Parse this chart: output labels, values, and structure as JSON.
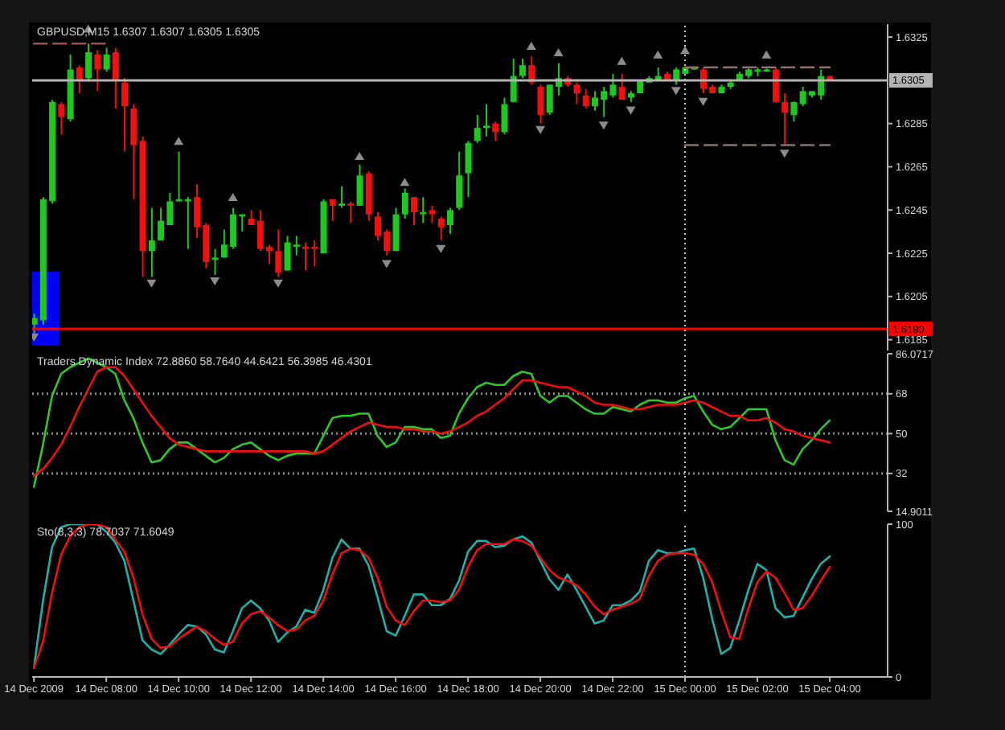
{
  "chart_data": [
    {
      "type": "candlestick",
      "title": "GBPUSD,M15 1.6307 1.6307 1.6305 1.6305",
      "x": [
        "2009-12-14T06:00",
        "2009-12-14T06:15",
        "2009-12-14T06:30",
        "2009-12-14T06:45",
        "2009-12-14T07:00",
        "2009-12-14T07:15",
        "2009-12-14T07:30",
        "2009-12-14T07:45",
        "2009-12-14T08:00",
        "2009-12-14T08:15",
        "2009-12-14T08:30",
        "2009-12-14T08:45",
        "2009-12-14T09:00",
        "2009-12-14T09:15",
        "2009-12-14T09:30",
        "2009-12-14T09:45",
        "2009-12-14T10:00",
        "2009-12-14T10:15",
        "2009-12-14T10:30",
        "2009-12-14T10:45",
        "2009-12-14T11:00",
        "2009-12-14T11:15",
        "2009-12-14T11:30",
        "2009-12-14T11:45",
        "2009-12-14T12:00",
        "2009-12-14T12:15",
        "2009-12-14T12:30",
        "2009-12-14T12:45",
        "2009-12-14T13:00",
        "2009-12-14T13:15",
        "2009-12-14T13:30",
        "2009-12-14T13:45",
        "2009-12-14T14:00",
        "2009-12-14T14:15",
        "2009-12-14T14:30",
        "2009-12-14T14:45",
        "2009-12-14T15:00",
        "2009-12-14T15:15",
        "2009-12-14T15:30",
        "2009-12-14T15:45",
        "2009-12-14T16:00",
        "2009-12-14T16:15",
        "2009-12-14T16:30",
        "2009-12-14T16:45",
        "2009-12-14T17:00",
        "2009-12-14T17:15",
        "2009-12-14T17:30",
        "2009-12-14T17:45",
        "2009-12-14T18:00",
        "2009-12-14T18:15",
        "2009-12-14T18:30",
        "2009-12-14T18:45",
        "2009-12-14T19:00",
        "2009-12-14T19:15",
        "2009-12-14T19:30",
        "2009-12-14T19:45",
        "2009-12-14T20:00",
        "2009-12-14T20:15",
        "2009-12-14T20:30",
        "2009-12-14T20:45",
        "2009-12-14T21:00",
        "2009-12-14T21:15",
        "2009-12-14T21:30",
        "2009-12-14T21:45",
        "2009-12-14T22:00",
        "2009-12-14T22:15",
        "2009-12-14T22:30",
        "2009-12-14T22:45",
        "2009-12-14T23:00",
        "2009-12-14T23:15",
        "2009-12-14T23:30",
        "2009-12-14T23:45",
        "2009-12-15T00:00",
        "2009-12-15T00:15",
        "2009-12-15T00:30",
        "2009-12-15T00:45",
        "2009-12-15T01:00",
        "2009-12-15T01:15",
        "2009-12-15T01:30",
        "2009-12-15T01:45",
        "2009-12-15T02:00",
        "2009-12-15T02:15",
        "2009-12-15T02:30",
        "2009-12-15T02:45",
        "2009-12-15T03:00",
        "2009-12-15T03:15",
        "2009-12-15T03:30",
        "2009-12-15T03:45",
        "2009-12-15T04:00"
      ],
      "ohlc": [
        [
          1.6192,
          1.6197,
          1.6188,
          1.6195
        ],
        [
          1.6194,
          1.6251,
          1.6192,
          1.625
        ],
        [
          1.6249,
          1.6296,
          1.6248,
          1.6295
        ],
        [
          1.6294,
          1.6295,
          1.628,
          1.6288
        ],
        [
          1.6287,
          1.6317,
          1.6286,
          1.631
        ],
        [
          1.6311,
          1.6312,
          1.6299,
          1.6305
        ],
        [
          1.6306,
          1.6322,
          1.6305,
          1.6318
        ],
        [
          1.6317,
          1.6319,
          1.63,
          1.631
        ],
        [
          1.631,
          1.632,
          1.6309,
          1.6317
        ],
        [
          1.6318,
          1.632,
          1.6292,
          1.6305
        ],
        [
          1.6304,
          1.6306,
          1.6272,
          1.6293
        ],
        [
          1.6292,
          1.6294,
          1.625,
          1.6275
        ],
        [
          1.6277,
          1.6279,
          1.6214,
          1.6226
        ],
        [
          1.6226,
          1.6246,
          1.6214,
          1.6231
        ],
        [
          1.6231,
          1.6246,
          1.6231,
          1.624
        ],
        [
          1.6238,
          1.6253,
          1.6238,
          1.6249
        ],
        [
          1.6249,
          1.6272,
          1.6249,
          1.625
        ],
        [
          1.6249,
          1.6251,
          1.6227,
          1.625
        ],
        [
          1.6251,
          1.6257,
          1.6232,
          1.6237
        ],
        [
          1.6238,
          1.6239,
          1.6218,
          1.6221
        ],
        [
          1.6222,
          1.6227,
          1.6215,
          1.6223
        ],
        [
          1.6223,
          1.6236,
          1.6223,
          1.6229
        ],
        [
          1.6228,
          1.6246,
          1.6227,
          1.6243
        ],
        [
          1.6242,
          1.6243,
          1.6235,
          1.6243
        ],
        [
          1.6241,
          1.6245,
          1.6238,
          1.6238
        ],
        [
          1.624,
          1.6245,
          1.6226,
          1.6227
        ],
        [
          1.6228,
          1.6229,
          1.622,
          1.6226
        ],
        [
          1.6226,
          1.6236,
          1.6214,
          1.6216
        ],
        [
          1.6217,
          1.6233,
          1.6217,
          1.623
        ],
        [
          1.6228,
          1.6233,
          1.6224,
          1.6229
        ],
        [
          1.6228,
          1.623,
          1.6217,
          1.6227
        ],
        [
          1.6228,
          1.6231,
          1.6219,
          1.6227
        ],
        [
          1.6225,
          1.625,
          1.6225,
          1.6249
        ],
        [
          1.625,
          1.625,
          1.624,
          1.6247
        ],
        [
          1.6247,
          1.6256,
          1.6246,
          1.6248
        ],
        [
          1.6248,
          1.6249,
          1.6239,
          1.6247
        ],
        [
          1.6247,
          1.6266,
          1.6247,
          1.6261
        ],
        [
          1.6262,
          1.6263,
          1.624,
          1.6243
        ],
        [
          1.6242,
          1.6244,
          1.6231,
          1.6233
        ],
        [
          1.6235,
          1.6236,
          1.6224,
          1.6226
        ],
        [
          1.6226,
          1.6246,
          1.6226,
          1.6243
        ],
        [
          1.6243,
          1.6255,
          1.6241,
          1.6253
        ],
        [
          1.6251,
          1.6251,
          1.6238,
          1.6244
        ],
        [
          1.6243,
          1.6251,
          1.6239,
          1.6244
        ],
        [
          1.6245,
          1.6247,
          1.6239,
          1.6243
        ],
        [
          1.6241,
          1.6242,
          1.6231,
          1.6237
        ],
        [
          1.6238,
          1.6246,
          1.6234,
          1.6245
        ],
        [
          1.6246,
          1.6272,
          1.6245,
          1.6261
        ],
        [
          1.6262,
          1.6277,
          1.6251,
          1.6276
        ],
        [
          1.6277,
          1.6289,
          1.6276,
          1.6283
        ],
        [
          1.6283,
          1.6294,
          1.6279,
          1.6284
        ],
        [
          1.6285,
          1.6286,
          1.6277,
          1.6281
        ],
        [
          1.6281,
          1.6297,
          1.628,
          1.6294
        ],
        [
          1.6295,
          1.6315,
          1.6295,
          1.6307
        ],
        [
          1.6307,
          1.6315,
          1.6306,
          1.6312
        ],
        [
          1.6312,
          1.6316,
          1.6303,
          1.6304
        ],
        [
          1.6302,
          1.6303,
          1.6285,
          1.6289
        ],
        [
          1.629,
          1.6303,
          1.6289,
          1.6303
        ],
        [
          1.6302,
          1.6313,
          1.6298,
          1.6306
        ],
        [
          1.6306,
          1.6307,
          1.6302,
          1.6303
        ],
        [
          1.6303,
          1.6304,
          1.6294,
          1.6299
        ],
        [
          1.6298,
          1.6301,
          1.6292,
          1.6293
        ],
        [
          1.6293,
          1.63,
          1.6291,
          1.6297
        ],
        [
          1.6296,
          1.6302,
          1.6288,
          1.63
        ],
        [
          1.6298,
          1.6308,
          1.6297,
          1.6303
        ],
        [
          1.6302,
          1.6308,
          1.6296,
          1.6296
        ],
        [
          1.6297,
          1.63,
          1.6295,
          1.6299
        ],
        [
          1.6299,
          1.6305,
          1.6299,
          1.6305
        ],
        [
          1.6304,
          1.6307,
          1.6304,
          1.6306
        ],
        [
          1.6305,
          1.6311,
          1.6305,
          1.6307
        ],
        [
          1.6308,
          1.6309,
          1.6305,
          1.6305
        ],
        [
          1.6305,
          1.6311,
          1.6303,
          1.631
        ],
        [
          1.6308,
          1.6311,
          1.6308,
          1.6311
        ],
        [
          1.631,
          1.6311,
          1.631,
          1.6311
        ],
        [
          1.631,
          1.6311,
          1.6299,
          1.6301
        ],
        [
          1.6302,
          1.6303,
          1.6299,
          1.6299
        ],
        [
          1.6299,
          1.6303,
          1.6299,
          1.6302
        ],
        [
          1.6302,
          1.6305,
          1.6301,
          1.6304
        ],
        [
          1.6305,
          1.6309,
          1.6305,
          1.6308
        ],
        [
          1.6307,
          1.6311,
          1.6306,
          1.631
        ],
        [
          1.6309,
          1.6311,
          1.6307,
          1.631
        ],
        [
          1.6309,
          1.6311,
          1.6309,
          1.631
        ],
        [
          1.631,
          1.6311,
          1.6295,
          1.6295
        ],
        [
          1.6295,
          1.6299,
          1.6275,
          1.629
        ],
        [
          1.6289,
          1.6295,
          1.6286,
          1.6295
        ],
        [
          1.6294,
          1.6302,
          1.6293,
          1.63
        ],
        [
          1.6298,
          1.63,
          1.6297,
          1.63
        ],
        [
          1.6298,
          1.631,
          1.6296,
          1.6307
        ],
        [
          1.6307,
          1.6307,
          1.6305,
          1.6305
        ]
      ],
      "colors": [
        "#1fc81f",
        "#1fc81f",
        "#1fc81f",
        "#f01010",
        "#1fc81f",
        "#f01010",
        "#1fc81f",
        "#f01010",
        "#1fc81f",
        "#f01010",
        "#f01010",
        "#f01010",
        "#f01010",
        "#1fc81f",
        "#1fc81f",
        "#1fc81f",
        "#1fc81f",
        "#1fc81f",
        "#f01010",
        "#f01010",
        "#1fc81f",
        "#1fc81f",
        "#1fc81f",
        "#1fc81f",
        "#f01010",
        "#f01010",
        "#f01010",
        "#f01010",
        "#1fc81f",
        "#1fc81f",
        "#f01010",
        "#f01010",
        "#1fc81f",
        "#f01010",
        "#1fc81f",
        "#f01010",
        "#1fc81f",
        "#f01010",
        "#f01010",
        "#f01010",
        "#1fc81f",
        "#1fc81f",
        "#f01010",
        "#1fc81f",
        "#f01010",
        "#f01010",
        "#1fc81f",
        "#1fc81f",
        "#1fc81f",
        "#1fc81f",
        "#1fc81f",
        "#f01010",
        "#1fc81f",
        "#1fc81f",
        "#1fc81f",
        "#f01010",
        "#f01010",
        "#1fc81f",
        "#1fc81f",
        "#f01010",
        "#f01010",
        "#f01010",
        "#1fc81f",
        "#1fc81f",
        "#1fc81f",
        "#f01010",
        "#1fc81f",
        "#1fc81f",
        "#1fc81f",
        "#1fc81f",
        "#f01010",
        "#1fc81f",
        "#1fc81f",
        "#1fc81f",
        "#f01010",
        "#f01010",
        "#1fc81f",
        "#1fc81f",
        "#1fc81f",
        "#1fc81f",
        "#1fc81f",
        "#1fc81f",
        "#f01010",
        "#f01010",
        "#1fc81f",
        "#1fc81f",
        "#1fc81f",
        "#1fc81f",
        "#f01010"
      ],
      "series": [
        {
          "type": "scatter",
          "marker": "triangle",
          "color": "#8c8c8c",
          "x": [
            "2009-12-14T06:00",
            "2009-12-14T07:30",
            "2009-12-14T09:15",
            "2009-12-14T10:00",
            "2009-12-14T11:00",
            "2009-12-14T11:30",
            "2009-12-14T12:45",
            "2009-12-14T15:00",
            "2009-12-14T15:45",
            "2009-12-14T16:15",
            "2009-12-14T17:15",
            "2009-12-14T19:45",
            "2009-12-14T20:00",
            "2009-12-14T20:30",
            "2009-12-14T21:45",
            "2009-12-14T22:15",
            "2009-12-14T22:30",
            "2009-12-14T23:15",
            "2009-12-14T23:45",
            "2009-12-15T00:00",
            "2009-12-15T00:30",
            "2009-12-15T02:15",
            "2009-12-15T02:45"
          ],
          "values": [
            1.6186,
            1.6329,
            1.6211,
            1.6277,
            1.6212,
            1.6251,
            1.6211,
            1.627,
            1.622,
            1.6258,
            1.6227,
            1.6321,
            1.6282,
            1.6318,
            1.6284,
            1.6314,
            1.6291,
            1.6317,
            1.63,
            1.6319,
            1.6295,
            1.6317,
            1.6271
          ]
        },
        {
          "type": "line",
          "line_style": "dashed",
          "color": "#a0503c",
          "x": [
            "2009-12-14T06:00",
            "2009-12-14T08:00"
          ],
          "values": [
            1.6322,
            1.6322
          ]
        },
        {
          "type": "line",
          "line_style": "dashed",
          "color": "#8c7264",
          "x": [
            "2009-12-15T00:00",
            "2009-12-15T04:00"
          ],
          "values": [
            1.6311,
            1.6311
          ]
        },
        {
          "type": "line",
          "line_style": "dashed",
          "color": "#8c7264",
          "x": [
            "2009-12-15T00:00",
            "2009-12-15T04:00"
          ],
          "values": [
            1.6275,
            1.6275
          ]
        }
      ],
      "xlim": [
        "2009-12-14T05:57",
        "2009-12-15T05:36"
      ],
      "ylim": [
        1.618,
        1.6331
      ],
      "yticks": [
        1.6185,
        1.6205,
        1.6225,
        1.6245,
        1.6265,
        1.6285,
        1.6325
      ],
      "tick_labels": "y",
      "ref_lines": [
        {
          "axis": "y",
          "value": 1.6305,
          "label": "1.6305",
          "color": "#b4b4b4"
        },
        {
          "axis": "y",
          "value": 1.619,
          "label": "1.6190",
          "color": "#ff0000"
        },
        {
          "axis": "x",
          "value": "2009-12-15T00:00",
          "line_style": "dotted",
          "color": "#c8c8c8"
        }
      ]
    },
    {
      "type": "line",
      "title": "Traders Dynamic Index 72.8860 58.7640 44.6421 56.3985 46.4301",
      "x": [
        "2009-12-14T06:00",
        "2009-12-14T06:15",
        "2009-12-14T06:30",
        "2009-12-14T06:45",
        "2009-12-14T07:00",
        "2009-12-14T07:15",
        "2009-12-14T07:30",
        "2009-12-14T07:45",
        "2009-12-14T08:00",
        "2009-12-14T08:15",
        "2009-12-14T08:30",
        "2009-12-14T08:45",
        "2009-12-14T09:00",
        "2009-12-14T09:15",
        "2009-12-14T09:30",
        "2009-12-14T09:45",
        "2009-12-14T10:00",
        "2009-12-14T10:15",
        "2009-12-14T10:30",
        "2009-12-14T10:45",
        "2009-12-14T11:00",
        "2009-12-14T11:15",
        "2009-12-14T11:30",
        "2009-12-14T11:45",
        "2009-12-14T12:00",
        "2009-12-14T12:15",
        "2009-12-14T12:30",
        "2009-12-14T12:45",
        "2009-12-14T13:00",
        "2009-12-14T13:15",
        "2009-12-14T13:30",
        "2009-12-14T13:45",
        "2009-12-14T14:00",
        "2009-12-14T14:15",
        "2009-12-14T14:30",
        "2009-12-14T14:45",
        "2009-12-14T15:00",
        "2009-12-14T15:15",
        "2009-12-14T15:30",
        "2009-12-14T15:45",
        "2009-12-14T16:00",
        "2009-12-14T16:15",
        "2009-12-14T16:30",
        "2009-12-14T16:45",
        "2009-12-14T17:00",
        "2009-12-14T17:15",
        "2009-12-14T17:30",
        "2009-12-14T17:45",
        "2009-12-14T18:00",
        "2009-12-14T18:15",
        "2009-12-14T18:30",
        "2009-12-14T18:45",
        "2009-12-14T19:00",
        "2009-12-14T19:15",
        "2009-12-14T19:30",
        "2009-12-14T19:45",
        "2009-12-14T20:00",
        "2009-12-14T20:15",
        "2009-12-14T20:30",
        "2009-12-14T20:45",
        "2009-12-14T21:00",
        "2009-12-14T21:15",
        "2009-12-14T21:30",
        "2009-12-14T21:45",
        "2009-12-14T22:00",
        "2009-12-14T22:15",
        "2009-12-14T22:30",
        "2009-12-14T22:45",
        "2009-12-14T23:00",
        "2009-12-14T23:15",
        "2009-12-14T23:30",
        "2009-12-14T23:45",
        "2009-12-15T00:00",
        "2009-12-15T00:15",
        "2009-12-15T00:30",
        "2009-12-15T00:45",
        "2009-12-15T01:00",
        "2009-12-15T01:15",
        "2009-12-15T01:30",
        "2009-12-15T01:45",
        "2009-12-15T02:00",
        "2009-12-15T02:15",
        "2009-12-15T02:30",
        "2009-12-15T02:45",
        "2009-12-15T03:00",
        "2009-12-15T03:15",
        "2009-12-15T03:30",
        "2009-12-15T03:45",
        "2009-12-15T04:00"
      ],
      "series": [
        {
          "color": "#2ec82e",
          "values": [
            26,
            45,
            67,
            77,
            80,
            82,
            84,
            82,
            80,
            77,
            65,
            57,
            46,
            37,
            38,
            43,
            46,
            46,
            43,
            40,
            37,
            39,
            43,
            45,
            46,
            43,
            40,
            38,
            40,
            41,
            41,
            41,
            49,
            57,
            58,
            58,
            59,
            59,
            49,
            44,
            46,
            53,
            53,
            52,
            52,
            48,
            49,
            59,
            66,
            71,
            73,
            72,
            72,
            76,
            78,
            77,
            67,
            64,
            67,
            67,
            64,
            61,
            59,
            59,
            62,
            61,
            60,
            63,
            65,
            65,
            64,
            64,
            66,
            67,
            60,
            54,
            52,
            53,
            57,
            61,
            61,
            61,
            47,
            38,
            36,
            43,
            47,
            52,
            56
          ]
        },
        {
          "color": "#f01010",
          "values": [
            31,
            34,
            39,
            45,
            53,
            62,
            70,
            78,
            80,
            80,
            76,
            70,
            64,
            58,
            53,
            48,
            45,
            44,
            43,
            42,
            42,
            42,
            42,
            42,
            42,
            42,
            42,
            42,
            42,
            42,
            42,
            41,
            42,
            45,
            48,
            51,
            53,
            55,
            54,
            53,
            53,
            52,
            52,
            51,
            51,
            50,
            51,
            53,
            55,
            58,
            60,
            63,
            66,
            70,
            74,
            74,
            73,
            72,
            71,
            71,
            69,
            67,
            64,
            63,
            63,
            62,
            61,
            61,
            62,
            63,
            63,
            63,
            64,
            65,
            64,
            62,
            60,
            58,
            58,
            56,
            56,
            57,
            55,
            52,
            51,
            49,
            48,
            47,
            46
          ]
        }
      ],
      "xlim": [
        "2009-12-14T05:57",
        "2009-12-15T05:36"
      ],
      "ylim": [
        14.9011,
        86.0717
      ],
      "yticks": [
        14.9011,
        32,
        50,
        68,
        86.0717
      ],
      "tick_labels": "y",
      "ref_lines": [
        {
          "axis": "y",
          "value": 68,
          "line_style": "dotted",
          "color": "#8c8c8c"
        },
        {
          "axis": "y",
          "value": 50,
          "line_style": "dotted",
          "color": "#8c8c8c"
        },
        {
          "axis": "y",
          "value": 32,
          "line_style": "dotted",
          "color": "#8c8c8c"
        },
        {
          "axis": "x",
          "value": "2009-12-15T00:00",
          "line_style": "dotted",
          "color": "#c8c8c8"
        }
      ]
    },
    {
      "type": "line",
      "title": "Sto(8,3,3) 78.7037 71.6049",
      "x": [
        "2009-12-14T06:00",
        "2009-12-14T06:15",
        "2009-12-14T06:30",
        "2009-12-14T06:45",
        "2009-12-14T07:00",
        "2009-12-14T07:15",
        "2009-12-14T07:30",
        "2009-12-14T07:45",
        "2009-12-14T08:00",
        "2009-12-14T08:15",
        "2009-12-14T08:30",
        "2009-12-14T08:45",
        "2009-12-14T09:00",
        "2009-12-14T09:15",
        "2009-12-14T09:30",
        "2009-12-14T09:45",
        "2009-12-14T10:00",
        "2009-12-14T10:15",
        "2009-12-14T10:30",
        "2009-12-14T10:45",
        "2009-12-14T11:00",
        "2009-12-14T11:15",
        "2009-12-14T11:30",
        "2009-12-14T11:45",
        "2009-12-14T12:00",
        "2009-12-14T12:15",
        "2009-12-14T12:30",
        "2009-12-14T12:45",
        "2009-12-14T13:00",
        "2009-12-14T13:15",
        "2009-12-14T13:30",
        "2009-12-14T13:45",
        "2009-12-14T14:00",
        "2009-12-14T14:15",
        "2009-12-14T14:30",
        "2009-12-14T14:45",
        "2009-12-14T15:00",
        "2009-12-14T15:15",
        "2009-12-14T15:30",
        "2009-12-14T15:45",
        "2009-12-14T16:00",
        "2009-12-14T16:15",
        "2009-12-14T16:30",
        "2009-12-14T16:45",
        "2009-12-14T17:00",
        "2009-12-14T17:15",
        "2009-12-14T17:30",
        "2009-12-14T17:45",
        "2009-12-14T18:00",
        "2009-12-14T18:15",
        "2009-12-14T18:30",
        "2009-12-14T18:45",
        "2009-12-14T19:00",
        "2009-12-14T19:15",
        "2009-12-14T19:30",
        "2009-12-14T19:45",
        "2009-12-14T20:00",
        "2009-12-14T20:15",
        "2009-12-14T20:30",
        "2009-12-14T20:45",
        "2009-12-14T21:00",
        "2009-12-14T21:15",
        "2009-12-14T21:30",
        "2009-12-14T21:45",
        "2009-12-14T22:00",
        "2009-12-14T22:15",
        "2009-12-14T22:30",
        "2009-12-14T22:45",
        "2009-12-14T23:00",
        "2009-12-14T23:15",
        "2009-12-14T23:30",
        "2009-12-14T23:45",
        "2009-12-15T00:00",
        "2009-12-15T00:15",
        "2009-12-15T00:30",
        "2009-12-15T00:45",
        "2009-12-15T01:00",
        "2009-12-15T01:15",
        "2009-12-15T01:30",
        "2009-12-15T01:45",
        "2009-12-15T02:00",
        "2009-12-15T02:15",
        "2009-12-15T02:30",
        "2009-12-15T02:45",
        "2009-12-15T03:00",
        "2009-12-15T03:15",
        "2009-12-15T03:30",
        "2009-12-15T03:45",
        "2009-12-15T04:00"
      ],
      "series": [
        {
          "color": "#20b2aa",
          "values": [
            6,
            50,
            85,
            98,
            100,
            100,
            100,
            100,
            95,
            88,
            76,
            50,
            24,
            18,
            15,
            21,
            28,
            34,
            33,
            28,
            18,
            16,
            30,
            45,
            50,
            45,
            37,
            23,
            29,
            33,
            44,
            42,
            57,
            78,
            90,
            84,
            84,
            73,
            52,
            30,
            27,
            40,
            54,
            54,
            47,
            47,
            51,
            63,
            82,
            89,
            89,
            85,
            86,
            90,
            92,
            88,
            76,
            64,
            57,
            67,
            57,
            46,
            35,
            37,
            47,
            47,
            50,
            56,
            76,
            83,
            81,
            81,
            83,
            84,
            65,
            38,
            15,
            19,
            37,
            57,
            74,
            70,
            45,
            39,
            40,
            52,
            64,
            74,
            79
          ]
        },
        {
          "color": "#f01010",
          "values": [
            6,
            23,
            55,
            80,
            92,
            98,
            100,
            100,
            98,
            90,
            82,
            65,
            41,
            25,
            19,
            20,
            25,
            29,
            33,
            30,
            25,
            21,
            23,
            35,
            41,
            43,
            39,
            34,
            30,
            31,
            37,
            40,
            50,
            67,
            81,
            84,
            83,
            78,
            65,
            46,
            37,
            34,
            43,
            50,
            50,
            49,
            50,
            57,
            72,
            83,
            87,
            87,
            87,
            90,
            89,
            86,
            78,
            70,
            65,
            63,
            60,
            54,
            46,
            41,
            44,
            46,
            48,
            51,
            66,
            76,
            80,
            81,
            81,
            80,
            74,
            62,
            43,
            26,
            25,
            45,
            62,
            69,
            65,
            55,
            44,
            45,
            53,
            63,
            72
          ]
        }
      ],
      "xlim": [
        "2009-12-14T05:57",
        "2009-12-15T05:36"
      ],
      "ylim": [
        0,
        100
      ],
      "yticks": [
        0,
        100
      ],
      "xticks": [
        {
          "value": "2009-12-14T06:00",
          "label": "14 Dec 2009"
        },
        {
          "value": "2009-12-14T08:00",
          "label": "14 Dec 08:00"
        },
        {
          "value": "2009-12-14T10:00",
          "label": "14 Dec 10:00"
        },
        {
          "value": "2009-12-14T12:00",
          "label": "14 Dec 12:00"
        },
        {
          "value": "2009-12-14T14:00",
          "label": "14 Dec 14:00"
        },
        {
          "value": "2009-12-14T16:00",
          "label": "14 Dec 16:00"
        },
        {
          "value": "2009-12-14T18:00",
          "label": "14 Dec 18:00"
        },
        {
          "value": "2009-12-14T20:00",
          "label": "14 Dec 20:00"
        },
        {
          "value": "2009-12-14T22:00",
          "label": "14 Dec 22:00"
        },
        {
          "value": "2009-12-15T00:00",
          "label": "15 Dec 00:00"
        },
        {
          "value": "2009-12-15T02:00",
          "label": "15 Dec 02:00"
        },
        {
          "value": "2009-12-15T04:00",
          "label": "15 Dec 04:00"
        }
      ],
      "ref_lines": [
        {
          "axis": "x",
          "value": "2009-12-15T00:00",
          "line_style": "dotted",
          "color": "#c8c8c8"
        }
      ]
    }
  ]
}
